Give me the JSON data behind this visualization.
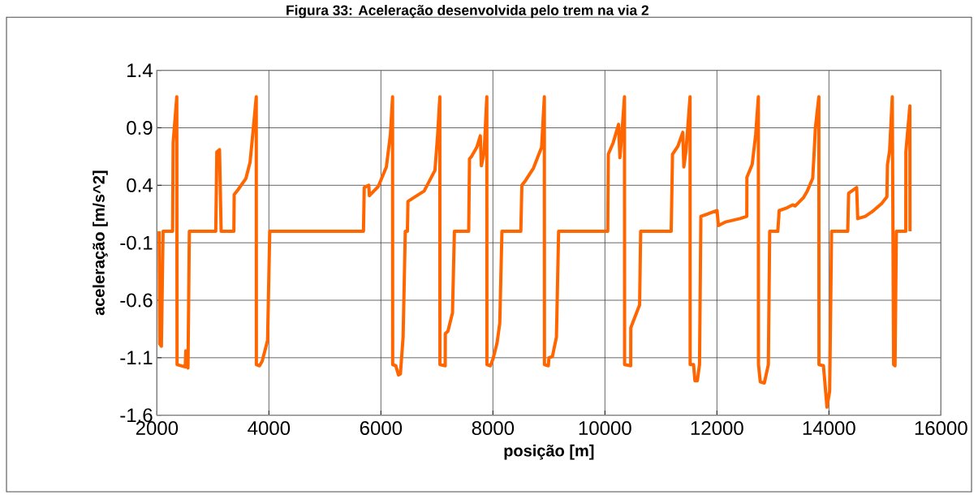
{
  "chart_data": {
    "type": "line",
    "title": "Figura 33: Aceleração desenvolvida pelo trem na via 2",
    "xlabel": "posição [m]",
    "ylabel": "aceleração [m/s^2]",
    "x": [
      2040,
      2050,
      2080,
      2110,
      2280,
      2290,
      2355,
      2360,
      2506,
      2516,
      2555,
      2579,
      3051,
      3070,
      3118,
      3147,
      3374,
      3380,
      3446,
      3590,
      3663,
      3711,
      3774,
      3776,
      3832,
      3880,
      3976,
      4015,
      5688,
      5702,
      5784,
      5794,
      5953,
      6097,
      6169,
      6208,
      6210,
      6266,
      6314,
      6348,
      6396,
      6435,
      6473,
      6483,
      6579,
      6772,
      6965,
      7013,
      7052,
      7054,
      7148,
      7150,
      7196,
      7278,
      7312,
      7567,
      7582,
      7616,
      7712,
      7775,
      7794,
      7843,
      7891,
      7893,
      7954,
      8002,
      8074,
      8122,
      8161,
      8498,
      8517,
      8580,
      8725,
      8836,
      8869,
      8918,
      8920,
      8990,
      9000,
      9062,
      9134,
      9173,
      10050,
      10060,
      10147,
      10243,
      10267,
      10301,
      10349,
      10351,
      10460,
      10462,
      10508,
      10619,
      10638,
      11183,
      11207,
      11303,
      11390,
      11409,
      11448,
      11520,
      11522,
      11583,
      11607,
      11650,
      11689,
      11713,
      11834,
      12002,
      12026,
      12147,
      12412,
      12533,
      12535,
      12629,
      12692,
      12740,
      12742,
      12774,
      12846,
      12918,
      12942,
      13087,
      13111,
      13231,
      13352,
      13396,
      13541,
      13613,
      13710,
      13734,
      13758,
      13820,
      13822,
      13902,
      13965,
      14013,
      14047,
      14336,
      14351,
      14495,
      14514,
      14649,
      14770,
      14939,
      15035,
      15045,
      15083,
      15131,
      15155,
      15180,
      15204,
      15372,
      15374,
      15445,
      15447
    ],
    "values": [
      0,
      -0.98,
      -1.0,
      0,
      0,
      0.77,
      1.17,
      -1.16,
      -1.18,
      -1.04,
      -1.19,
      0,
      0,
      0.69,
      0.71,
      0,
      0,
      0.32,
      0.36,
      0.46,
      0.6,
      0.84,
      1.17,
      -1.16,
      -1.17,
      -1.13,
      -0.95,
      0,
      0,
      0.38,
      0.4,
      0.31,
      0.39,
      0.56,
      0.84,
      1.17,
      -1.16,
      -1.17,
      -1.25,
      -1.24,
      -0.92,
      0,
      0,
      0.26,
      0.29,
      0.35,
      0.53,
      0.84,
      1.17,
      -1.16,
      -1.17,
      -0.89,
      -0.87,
      -0.71,
      0,
      0,
      0.63,
      0.65,
      0.73,
      0.83,
      0.57,
      0.69,
      1.17,
      -1.16,
      -1.17,
      -1.11,
      -0.97,
      -0.8,
      0,
      0,
      0.4,
      0.44,
      0.55,
      0.69,
      0.73,
      1.17,
      -1.16,
      -1.17,
      -1.1,
      -1.09,
      -0.92,
      0,
      0,
      0.67,
      0.77,
      0.93,
      0.64,
      0.84,
      1.17,
      -1.16,
      -1.17,
      -0.84,
      -0.78,
      -0.64,
      0,
      0,
      0.67,
      0.74,
      0.86,
      0.56,
      0.7,
      1.17,
      -1.16,
      -1.16,
      -1.3,
      -1.3,
      -1.16,
      0.13,
      0.15,
      0.18,
      0.05,
      0.08,
      0.11,
      0.13,
      0.47,
      0.58,
      0.84,
      1.17,
      -1.16,
      -1.31,
      -1.32,
      -1.16,
      0,
      0,
      0.18,
      0.2,
      0.23,
      0.22,
      0.29,
      0.35,
      0.46,
      0.67,
      0.9,
      1.17,
      -1.16,
      -1.17,
      -1.53,
      -1.39,
      0,
      0,
      0.33,
      0.38,
      0.11,
      0.13,
      0.17,
      0.24,
      0.3,
      0.58,
      0.7,
      1.17,
      -1.16,
      -1.17,
      0,
      0,
      0.69,
      1.09,
      0
    ],
    "color": "#ff6600",
    "line_style": "solid",
    "grid": true,
    "xlim": [
      2000,
      16000
    ],
    "ylim": [
      -1.6,
      1.4
    ],
    "xticks": [
      2000,
      4000,
      6000,
      8000,
      10000,
      12000,
      14000,
      16000
    ],
    "yticks": [
      -1.6,
      -1.1,
      -0.6,
      -0.1,
      0.4,
      0.9,
      1.4
    ]
  }
}
